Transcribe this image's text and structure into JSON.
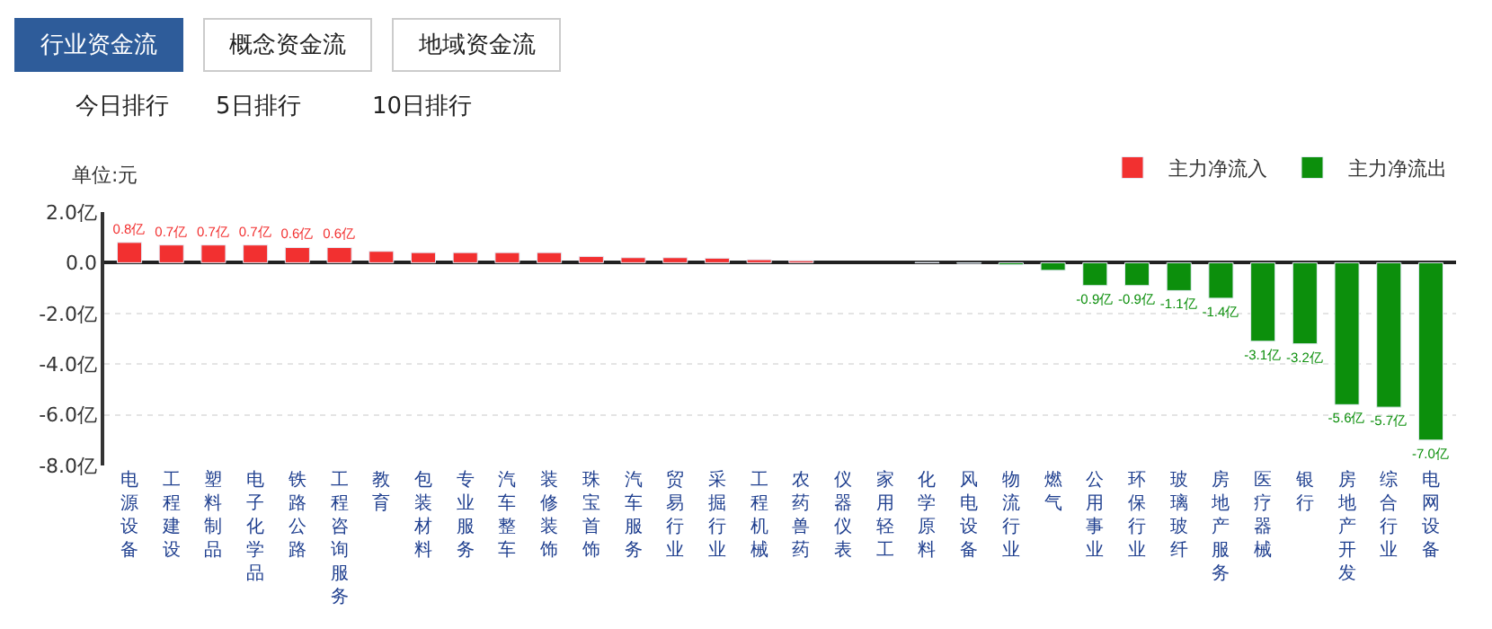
{
  "chart_data": {
    "type": "bar",
    "ylabel": "单位:元",
    "annotations": [
      "行业资金流",
      "概念资金流",
      "地域资金流",
      "今日排行",
      "5日排行",
      "10日排行"
    ],
    "categories": [
      "电源设备",
      "工程建设",
      "塑料制品",
      "电子化学品",
      "铁路公路",
      "工程咨询服务",
      "教育",
      "包装材料",
      "专业服务",
      "汽车整车",
      "装修装饰",
      "珠宝首饰",
      "汽车服务",
      "贸易行业",
      "采掘行业",
      "工程机械",
      "农药兽药",
      "仪器仪表",
      "家用轻工",
      "化学原料",
      "风电设备",
      "物流行业",
      "燃气",
      "公用事业",
      "环保行业",
      "玻璃玻纤",
      "房地产服务",
      "医疗器械",
      "银行",
      "房地产开发",
      "综合行业",
      "电网设备"
    ],
    "series": [
      {
        "name": "主力净流入",
        "color": "#f23030",
        "values": [
          0.8,
          0.7,
          0.7,
          0.7,
          0.6,
          0.6,
          0.45,
          0.4,
          0.4,
          0.4,
          0.4,
          0.25,
          0.2,
          0.2,
          0.18,
          0.12,
          0.08,
          null,
          null,
          0.01,
          null,
          null,
          null,
          null,
          null,
          null,
          null,
          null,
          null,
          null,
          null,
          null
        ],
        "value_labels": [
          "0.8亿",
          "0.7亿",
          "0.7亿",
          "0.7亿",
          "0.6亿",
          "0.6亿",
          null,
          null,
          null,
          null,
          null,
          null,
          null,
          null,
          null,
          null,
          null,
          null,
          null,
          null,
          null,
          null,
          null,
          null,
          null,
          null,
          null,
          null,
          null,
          null,
          null,
          null
        ]
      },
      {
        "name": "主力净流出",
        "color": "#0c8f0c",
        "values": [
          null,
          null,
          null,
          null,
          null,
          null,
          null,
          null,
          null,
          null,
          null,
          null,
          null,
          null,
          null,
          null,
          null,
          null,
          null,
          null,
          -0.02,
          -0.08,
          -0.3,
          -0.9,
          -0.9,
          -1.1,
          -1.4,
          -3.1,
          -3.2,
          -5.6,
          -5.7,
          -7.0
        ],
        "value_labels": [
          null,
          null,
          null,
          null,
          null,
          null,
          null,
          null,
          null,
          null,
          null,
          null,
          null,
          null,
          null,
          null,
          null,
          null,
          null,
          null,
          null,
          null,
          null,
          "-0.9亿",
          "-0.9亿",
          "-1.1亿",
          "-1.4亿",
          "-3.1亿",
          "-3.2亿",
          "-5.6亿",
          "-5.7亿",
          "-7.0亿"
        ]
      }
    ],
    "ylim": [
      -8,
      2
    ],
    "yticks": [
      {
        "value": 2,
        "label": "2.0亿"
      },
      {
        "value": 0,
        "label": "0.0"
      },
      {
        "value": -2,
        "label": "-2.0亿"
      },
      {
        "value": -4,
        "label": "-4.0亿"
      },
      {
        "value": -6,
        "label": "-6.0亿"
      },
      {
        "value": -8,
        "label": "-8.0亿"
      }
    ],
    "grid": "y",
    "legend": "top right"
  }
}
